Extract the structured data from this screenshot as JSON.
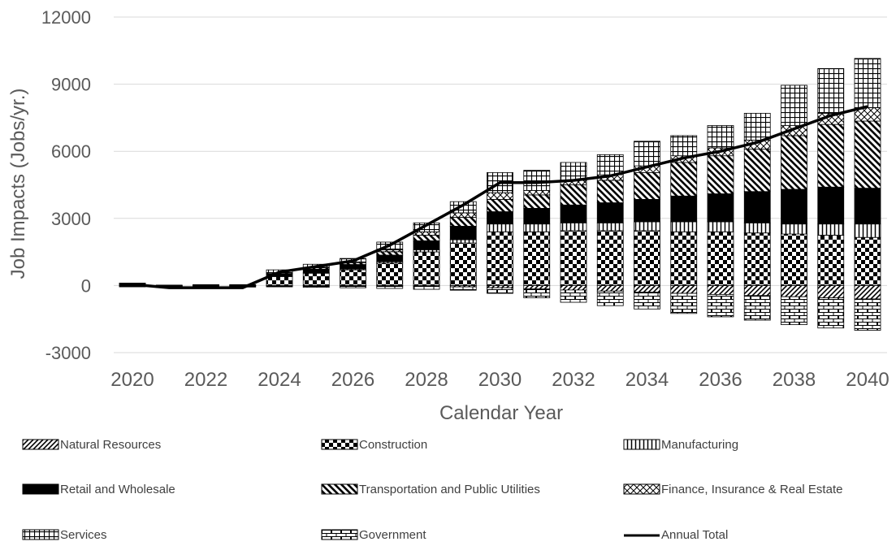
{
  "chart_data": {
    "type": "bar",
    "stacked": true,
    "title": "",
    "xlabel": "Calendar Year",
    "ylabel": "Job Impacts  (Jobs/yr.)",
    "ylim": [
      -3000,
      12000
    ],
    "yticks": [
      -3000,
      0,
      3000,
      6000,
      9000,
      12000
    ],
    "xticks": [
      "2020",
      "2022",
      "2024",
      "2026",
      "2028",
      "2030",
      "2032",
      "2034",
      "2036",
      "2038",
      "2040"
    ],
    "grid": "horizontal",
    "legend_position": "bottom",
    "categories": [
      "2020",
      "2021",
      "2022",
      "2023",
      "2024",
      "2025",
      "2026",
      "2027",
      "2028",
      "2029",
      "2030",
      "2031",
      "2032",
      "2033",
      "2034",
      "2035",
      "2036",
      "2037",
      "2038",
      "2039",
      "2040"
    ],
    "series": [
      {
        "name": "Natural Resources",
        "pattern": "diagonal",
        "values": [
          -10,
          -10,
          -10,
          -10,
          -10,
          -20,
          -20,
          -30,
          -40,
          -60,
          -100,
          -150,
          -200,
          -250,
          -300,
          -350,
          -400,
          -450,
          -500,
          -550,
          -600
        ]
      },
      {
        "name": "Construction",
        "pattern": "checker",
        "values": [
          30,
          20,
          20,
          20,
          400,
          550,
          700,
          1000,
          1500,
          1900,
          2400,
          2400,
          2450,
          2450,
          2450,
          2400,
          2400,
          2350,
          2300,
          2250,
          2150
        ]
      },
      {
        "name": "Manufacturing",
        "pattern": "vertical",
        "values": [
          0,
          0,
          0,
          0,
          20,
          30,
          40,
          60,
          100,
          150,
          350,
          350,
          350,
          350,
          400,
          450,
          450,
          450,
          450,
          500,
          600
        ]
      },
      {
        "name": "Retail and Wholesale",
        "pattern": "solid",
        "values": [
          60,
          -20,
          20,
          20,
          100,
          150,
          200,
          300,
          400,
          600,
          550,
          700,
          800,
          900,
          1000,
          1150,
          1250,
          1400,
          1550,
          1650,
          1600
        ]
      },
      {
        "name": "Transportation and Public Utilities",
        "pattern": "diagonal-back",
        "values": [
          0,
          0,
          0,
          0,
          40,
          60,
          80,
          150,
          250,
          400,
          550,
          600,
          900,
          1000,
          1200,
          1500,
          1700,
          1900,
          2400,
          2800,
          3000
        ]
      },
      {
        "name": "Finance, Insurance & Real Estate",
        "pattern": "crosshatch",
        "values": [
          0,
          0,
          0,
          0,
          20,
          30,
          40,
          80,
          150,
          200,
          300,
          200,
          200,
          250,
          300,
          300,
          350,
          400,
          450,
          500,
          600
        ]
      },
      {
        "name": "Services",
        "pattern": "grid",
        "values": [
          20,
          0,
          0,
          0,
          120,
          130,
          150,
          350,
          400,
          500,
          900,
          900,
          800,
          900,
          1100,
          900,
          1000,
          1200,
          1800,
          2000,
          2200
        ]
      },
      {
        "name": "Government",
        "pattern": "brick",
        "values": [
          -50,
          -60,
          -60,
          -60,
          -50,
          -60,
          -80,
          -100,
          -130,
          -150,
          -250,
          -400,
          -550,
          -650,
          -750,
          -900,
          -1000,
          -1100,
          -1250,
          -1350,
          -1400
        ]
      }
    ],
    "line": {
      "name": "Annual Total",
      "values": [
        50,
        -100,
        -100,
        -100,
        600,
        850,
        1100,
        1800,
        2700,
        3600,
        4600,
        4600,
        4700,
        4900,
        5300,
        5700,
        6000,
        6400,
        7000,
        7600,
        8000
      ]
    }
  }
}
